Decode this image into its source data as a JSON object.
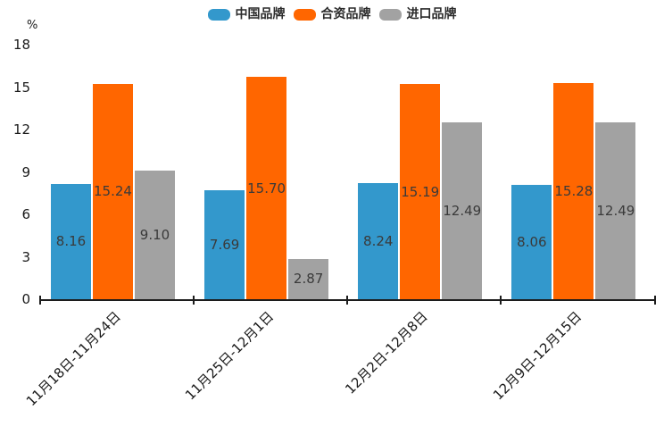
{
  "chart_data": {
    "type": "bar",
    "title": "",
    "ylabel": "%",
    "xlabel": "",
    "ylim": [
      0,
      18
    ],
    "yticks": [
      0,
      3,
      6,
      9,
      12,
      15,
      18
    ],
    "grid": false,
    "legend_position": "top",
    "value_label_position": "inside-center",
    "categories": [
      "11月18日-11月24日",
      "11月25日-12月1日",
      "12月2日-12月8日",
      "12月9日-12月15日"
    ],
    "series": [
      {
        "name": "中国品牌",
        "color": "#3398CC",
        "values": [
          8.16,
          7.69,
          8.24,
          8.06
        ],
        "labels": [
          "8.16",
          "7.69",
          "8.24",
          "8.06"
        ]
      },
      {
        "name": "合资品牌",
        "color": "#FF6600",
        "values": [
          15.24,
          15.7,
          15.19,
          15.28
        ],
        "labels": [
          "15.24",
          "15.70",
          "15.19",
          "15.28"
        ]
      },
      {
        "name": "进口品牌",
        "color": "#A2A2A2",
        "values": [
          9.1,
          2.87,
          12.49,
          12.49
        ],
        "labels": [
          "9.10",
          "2.87",
          "12.49",
          "12.49"
        ]
      }
    ],
    "colors": {
      "axis": "#1c1c1c",
      "value_label_text": "#3a3a3a",
      "background": "#ffffff"
    }
  }
}
